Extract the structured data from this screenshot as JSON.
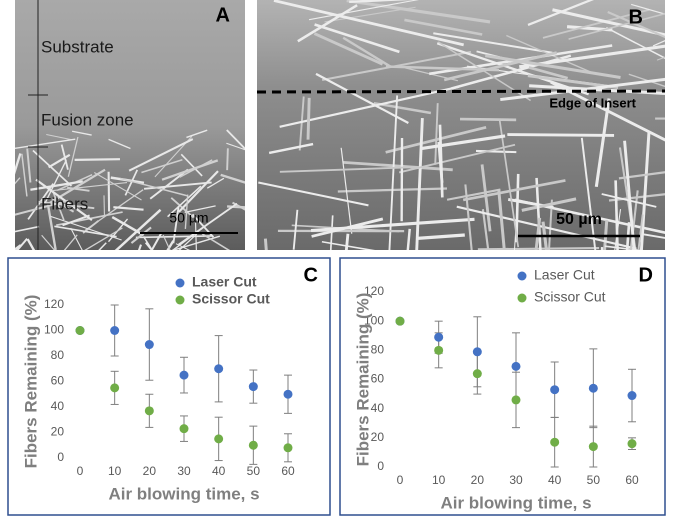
{
  "images": [
    {
      "label": "A",
      "annotations": [
        "Substrate",
        "Fusion zone",
        "Fibers"
      ],
      "scale_bar": "50 µm"
    },
    {
      "label": "B",
      "annotations": [
        "Edge of Insert"
      ],
      "scale_bar": "50 µm"
    }
  ],
  "chart_data": [
    {
      "type": "scatter",
      "label": "C",
      "x_label": "Air blowing time, s",
      "y_label": "Fibers Remaining (%)",
      "x": [
        0,
        10,
        20,
        30,
        40,
        50,
        60
      ],
      "series": [
        {
          "name": "Laser Cut",
          "color": "#4472c4",
          "values": [
            100,
            100,
            89,
            65,
            70,
            56,
            50
          ],
          "errors": [
            0,
            20,
            28,
            14,
            26,
            13,
            15
          ]
        },
        {
          "name": "Scissor Cut",
          "color": "#70ad47",
          "values": [
            100,
            55,
            37,
            23,
            15,
            10,
            8
          ],
          "errors": [
            0,
            13,
            13,
            10,
            17,
            15,
            11
          ]
        }
      ],
      "xlim": [
        0,
        60
      ],
      "xticks": [
        0,
        10,
        20,
        30,
        40,
        50,
        60
      ],
      "ylim": [
        0,
        120
      ],
      "yticks": [
        0,
        20,
        40,
        60,
        80,
        100,
        120
      ],
      "grid": false
    },
    {
      "type": "scatter",
      "label": "D",
      "x_label": "Air blowing time, s",
      "y_label": "Fibers Remaining (%)",
      "x": [
        0,
        10,
        20,
        30,
        40,
        50,
        60
      ],
      "series": [
        {
          "name": "Laser Cut",
          "color": "#4472c4",
          "values": [
            100,
            89,
            79,
            69,
            53,
            54,
            49
          ],
          "errors": [
            0,
            11,
            24,
            23,
            19,
            27,
            18
          ]
        },
        {
          "name": "Scissor Cut",
          "color": "#70ad47",
          "values": [
            100,
            80,
            64,
            46,
            17,
            14,
            16
          ],
          "errors": [
            0,
            12,
            14,
            19,
            17,
            14,
            4
          ]
        }
      ],
      "xlim": [
        0,
        60
      ],
      "xticks": [
        0,
        10,
        20,
        30,
        40,
        50,
        60
      ],
      "ylim": [
        0,
        120
      ],
      "yticks": [
        0,
        20,
        40,
        60,
        80,
        100,
        120
      ],
      "grid": false
    }
  ]
}
